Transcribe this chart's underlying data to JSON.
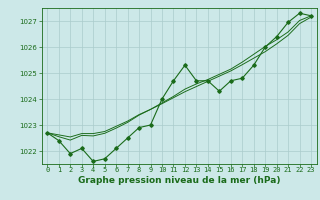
{
  "title": "Graphe pression niveau de la mer (hPa)",
  "background_color": "#cce8e8",
  "grid_color": "#aacccc",
  "line_color": "#1a6b1a",
  "x_values": [
    0,
    1,
    2,
    3,
    4,
    5,
    6,
    7,
    8,
    9,
    10,
    11,
    12,
    13,
    14,
    15,
    16,
    17,
    18,
    19,
    20,
    21,
    22,
    23
  ],
  "series1": [
    1022.7,
    1022.4,
    1021.9,
    1022.1,
    1021.6,
    1021.7,
    1022.1,
    1022.5,
    1022.9,
    1023.0,
    1024.0,
    1024.7,
    1025.3,
    1024.7,
    1024.7,
    1024.3,
    1024.7,
    1024.8,
    1025.3,
    1026.0,
    1026.4,
    1026.95,
    1027.3,
    1027.2
  ],
  "series2": [
    1022.7,
    1022.62,
    1022.54,
    1022.67,
    1022.67,
    1022.75,
    1022.95,
    1023.15,
    1023.4,
    1023.6,
    1023.82,
    1024.05,
    1024.28,
    1024.48,
    1024.68,
    1024.88,
    1025.08,
    1025.32,
    1025.57,
    1025.82,
    1026.12,
    1026.45,
    1026.9,
    1027.15
  ],
  "series3": [
    1022.7,
    1022.55,
    1022.42,
    1022.6,
    1022.58,
    1022.68,
    1022.88,
    1023.1,
    1023.38,
    1023.6,
    1023.85,
    1024.1,
    1024.38,
    1024.58,
    1024.75,
    1024.95,
    1025.15,
    1025.42,
    1025.72,
    1026.02,
    1026.28,
    1026.58,
    1027.02,
    1027.2
  ],
  "ylim": [
    1021.5,
    1027.5
  ],
  "yticks": [
    1022,
    1023,
    1024,
    1025,
    1026,
    1027
  ],
  "xlim": [
    -0.5,
    23.5
  ],
  "xticks": [
    0,
    1,
    2,
    3,
    4,
    5,
    6,
    7,
    8,
    9,
    10,
    11,
    12,
    13,
    14,
    15,
    16,
    17,
    18,
    19,
    20,
    21,
    22,
    23
  ],
  "tick_label_fontsize": 5.0,
  "title_fontsize": 6.5,
  "marker": "D",
  "markersize": 1.8,
  "linewidth": 0.8
}
